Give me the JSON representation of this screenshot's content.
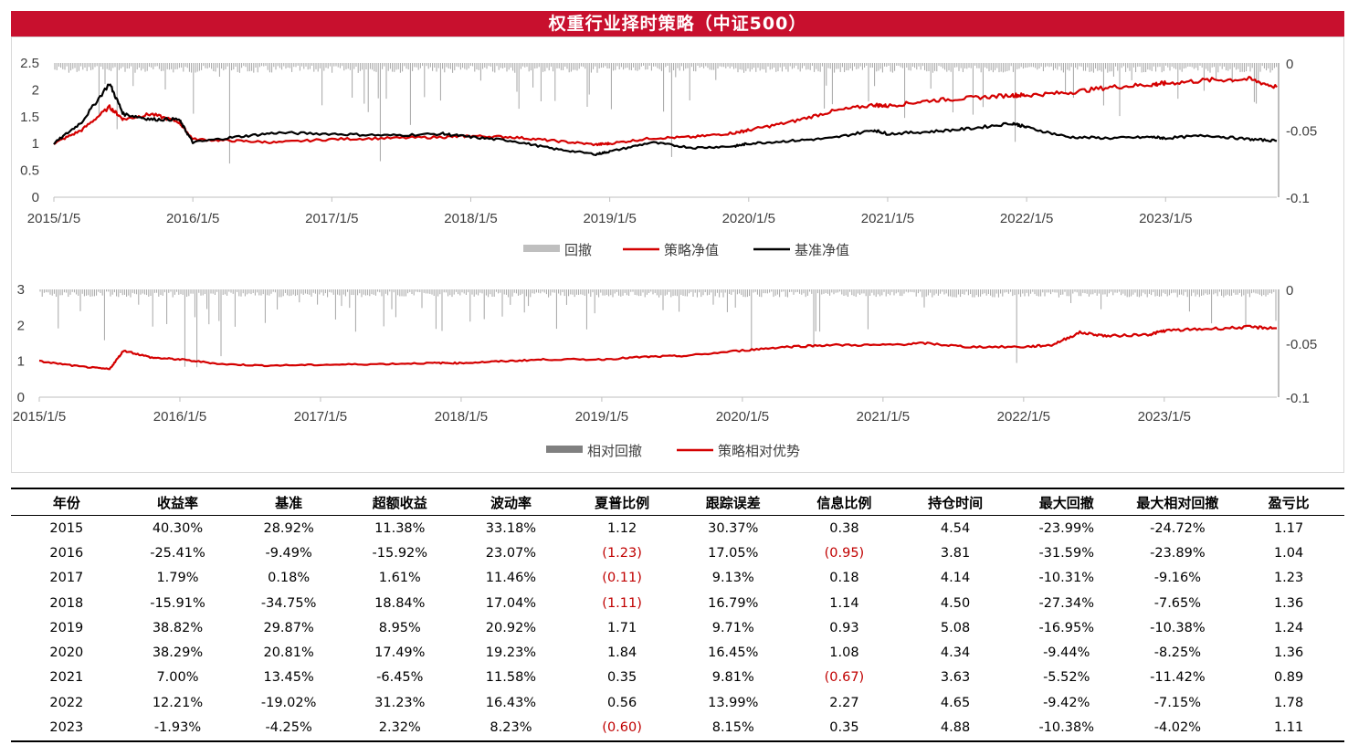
{
  "title": "权重行业择时策略（中证500）",
  "chart_data": [
    {
      "type": "line",
      "x_tick_labels": [
        "2015/1/5",
        "2016/1/5",
        "2017/1/5",
        "2018/1/5",
        "2019/1/5",
        "2020/1/5",
        "2021/1/5",
        "2022/1/5",
        "2023/1/5"
      ],
      "y_left_ticks": [
        "0",
        "0.5",
        "1",
        "1.5",
        "2",
        "2.5"
      ],
      "y_right_ticks": [
        "0",
        "-0.05",
        "-0.1"
      ],
      "ylim_left": [
        0,
        2.5
      ],
      "ylim_right": [
        -0.1,
        0
      ],
      "legend": [
        "回撤",
        "策略净值",
        "基准净值"
      ],
      "legend_position": "bottom-center",
      "series": [
        {
          "name": "策略净值",
          "color": "#d40000",
          "x": [
            2015.0,
            2015.2,
            2015.4,
            2015.5,
            2015.7,
            2015.9,
            2016.0,
            2016.3,
            2016.6,
            2017.0,
            2017.4,
            2017.8,
            2018.0,
            2018.3,
            2018.6,
            2018.9,
            2019.0,
            2019.3,
            2019.6,
            2019.9,
            2020.0,
            2020.3,
            2020.6,
            2020.9,
            2021.0,
            2021.3,
            2021.6,
            2021.9,
            2022.0,
            2022.3,
            2022.6,
            2022.9,
            2023.0,
            2023.3,
            2023.6,
            2023.8
          ],
          "values": [
            1.0,
            1.25,
            1.68,
            1.45,
            1.55,
            1.4,
            1.08,
            1.05,
            1.02,
            1.08,
            1.1,
            1.12,
            1.14,
            1.12,
            1.05,
            0.98,
            1.0,
            1.1,
            1.12,
            1.2,
            1.25,
            1.4,
            1.6,
            1.72,
            1.7,
            1.8,
            1.85,
            1.9,
            1.9,
            1.95,
            2.05,
            2.1,
            2.12,
            2.18,
            2.2,
            2.05
          ]
        },
        {
          "name": "基准净值",
          "color": "#000000",
          "x": [
            2015.0,
            2015.2,
            2015.4,
            2015.5,
            2015.7,
            2015.9,
            2016.0,
            2016.3,
            2016.6,
            2017.0,
            2017.4,
            2017.8,
            2018.0,
            2018.3,
            2018.6,
            2018.9,
            2019.0,
            2019.3,
            2019.6,
            2019.9,
            2020.0,
            2020.3,
            2020.6,
            2020.9,
            2021.0,
            2021.3,
            2021.6,
            2021.9,
            2022.0,
            2022.3,
            2022.6,
            2022.9,
            2023.0,
            2023.3,
            2023.6,
            2023.8
          ],
          "values": [
            1.0,
            1.4,
            2.12,
            1.55,
            1.45,
            1.45,
            1.02,
            1.12,
            1.2,
            1.18,
            1.15,
            1.18,
            1.12,
            1.05,
            0.9,
            0.8,
            0.85,
            1.02,
            0.92,
            0.95,
            1.0,
            1.05,
            1.1,
            1.25,
            1.18,
            1.22,
            1.28,
            1.38,
            1.3,
            1.12,
            1.1,
            1.12,
            1.1,
            1.15,
            1.08,
            1.05
          ]
        }
      ]
    },
    {
      "type": "line",
      "x_tick_labels": [
        "2015/1/5",
        "2016/1/5",
        "2017/1/5",
        "2018/1/5",
        "2019/1/5",
        "2020/1/5",
        "2021/1/5",
        "2022/1/5",
        "2023/1/5"
      ],
      "y_left_ticks": [
        "0",
        "1",
        "2",
        "3"
      ],
      "y_right_ticks": [
        "0",
        "-0.05",
        "-0.1"
      ],
      "ylim_left": [
        0,
        3
      ],
      "ylim_right": [
        -0.1,
        0
      ],
      "legend": [
        "相对回撤",
        "策略相对优势"
      ],
      "legend_position": "bottom-center",
      "series": [
        {
          "name": "策略相对优势",
          "color": "#d40000",
          "x": [
            2015.0,
            2015.3,
            2015.5,
            2015.6,
            2015.8,
            2016.0,
            2016.3,
            2016.6,
            2017.0,
            2017.4,
            2017.8,
            2018.0,
            2018.3,
            2018.6,
            2019.0,
            2019.3,
            2019.6,
            2020.0,
            2020.3,
            2020.6,
            2021.0,
            2021.3,
            2021.6,
            2022.0,
            2022.2,
            2022.4,
            2022.6,
            2022.9,
            2023.0,
            2023.3,
            2023.6,
            2023.8
          ],
          "values": [
            1.0,
            0.85,
            0.78,
            1.3,
            1.1,
            1.05,
            0.92,
            0.88,
            0.9,
            0.92,
            0.95,
            0.95,
            1.0,
            1.05,
            1.05,
            1.12,
            1.15,
            1.3,
            1.4,
            1.45,
            1.45,
            1.5,
            1.4,
            1.4,
            1.45,
            1.8,
            1.7,
            1.75,
            1.85,
            1.9,
            1.95,
            1.92
          ]
        }
      ]
    }
  ],
  "table": {
    "headers": [
      "年份",
      "收益率",
      "基准",
      "超额收益",
      "波动率",
      "夏普比例",
      "跟踪误差",
      "信息比例",
      "持仓时间",
      "最大回撤",
      "最大相对回撤",
      "盈亏比"
    ],
    "rows": [
      [
        "2015",
        "40.30%",
        "28.92%",
        "11.38%",
        "33.18%",
        "1.12",
        "30.37%",
        "0.38",
        "4.54",
        "-23.99%",
        "-24.72%",
        "1.17"
      ],
      [
        "2016",
        "-25.41%",
        "-9.49%",
        "-15.92%",
        "23.07%",
        "(1.23)",
        "17.05%",
        "(0.95)",
        "3.81",
        "-31.59%",
        "-23.89%",
        "1.04"
      ],
      [
        "2017",
        "1.79%",
        "0.18%",
        "1.61%",
        "11.46%",
        "(0.11)",
        "9.13%",
        "0.18",
        "4.14",
        "-10.31%",
        "-9.16%",
        "1.23"
      ],
      [
        "2018",
        "-15.91%",
        "-34.75%",
        "18.84%",
        "17.04%",
        "(1.11)",
        "16.79%",
        "1.14",
        "4.50",
        "-27.34%",
        "-7.65%",
        "1.36"
      ],
      [
        "2019",
        "38.82%",
        "29.87%",
        "8.95%",
        "20.92%",
        "1.71",
        "9.71%",
        "0.93",
        "5.08",
        "-16.95%",
        "-10.38%",
        "1.24"
      ],
      [
        "2020",
        "38.29%",
        "20.81%",
        "17.49%",
        "19.23%",
        "1.84",
        "16.45%",
        "1.08",
        "4.34",
        "-9.44%",
        "-8.25%",
        "1.36"
      ],
      [
        "2021",
        "7.00%",
        "13.45%",
        "-6.45%",
        "11.58%",
        "0.35",
        "9.81%",
        "(0.67)",
        "3.63",
        "-5.52%",
        "-11.42%",
        "0.89"
      ],
      [
        "2022",
        "12.21%",
        "-19.02%",
        "31.23%",
        "16.43%",
        "0.56",
        "13.99%",
        "2.27",
        "4.65",
        "-9.42%",
        "-7.15%",
        "1.78"
      ],
      [
        "2023",
        "-1.93%",
        "-4.25%",
        "2.32%",
        "8.23%",
        "(0.60)",
        "8.15%",
        "0.35",
        "4.88",
        "-10.38%",
        "-4.02%",
        "1.11"
      ]
    ]
  }
}
